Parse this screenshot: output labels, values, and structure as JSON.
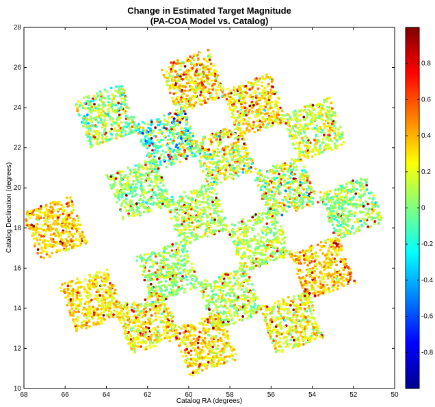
{
  "chart_data": {
    "type": "scatter",
    "title": "Change in Estimated Target Magnitude",
    "subtitle": "(PA-COA Model vs. Catalog)",
    "xlabel": "Catalog RA (degrees)",
    "ylabel": "Catalog Declination (degrees)",
    "xlim": [
      50,
      68
    ],
    "ylim": [
      10,
      28
    ],
    "x_reversed": true,
    "x_ticks": [
      "68",
      "66",
      "64",
      "62",
      "60",
      "58",
      "56",
      "54",
      "52",
      "50"
    ],
    "y_ticks": [
      "10",
      "12",
      "14",
      "16",
      "18",
      "20",
      "22",
      "24",
      "26",
      "28"
    ],
    "colormap": "jet",
    "color_range": [
      -1,
      1
    ],
    "colorbar_ticks": [
      "0.8",
      "0.6",
      "0.4",
      "0.2",
      "0",
      "-0.2",
      "-0.4",
      "-0.6",
      "-0.8"
    ],
    "marker": "dot",
    "tiles": [
      {
        "center": [
          59.8,
          25.3
        ],
        "mean": 0.3,
        "spread": 0.3
      },
      {
        "center": [
          56.8,
          24.1
        ],
        "mean": 0.3,
        "spread": 0.28
      },
      {
        "center": [
          53.9,
          22.9
        ],
        "mean": 0.15,
        "spread": 0.25
      },
      {
        "center": [
          64.0,
          23.6
        ],
        "mean": 0.05,
        "spread": 0.35
      },
      {
        "center": [
          61.0,
          22.4
        ],
        "mean": -0.05,
        "spread": 0.55
      },
      {
        "center": [
          58.3,
          21.6
        ],
        "mean": 0.15,
        "spread": 0.35
      },
      {
        "center": [
          55.3,
          20.0
        ],
        "mean": 0.1,
        "spread": 0.35
      },
      {
        "center": [
          52.1,
          19.0
        ],
        "mean": 0.05,
        "spread": 0.25
      },
      {
        "center": [
          62.4,
          19.9
        ],
        "mean": 0.05,
        "spread": 0.2
      },
      {
        "center": [
          59.6,
          18.7
        ],
        "mean": 0.1,
        "spread": 0.22
      },
      {
        "center": [
          56.6,
          17.4
        ],
        "mean": 0.1,
        "spread": 0.22
      },
      {
        "center": [
          53.5,
          16.0
        ],
        "mean": 0.35,
        "spread": 0.25
      },
      {
        "center": [
          66.5,
          18.0
        ],
        "mean": 0.35,
        "spread": 0.2
      },
      {
        "center": [
          61.0,
          15.8
        ],
        "mean": 0.05,
        "spread": 0.22
      },
      {
        "center": [
          58.0,
          14.5
        ],
        "mean": 0.1,
        "spread": 0.22
      },
      {
        "center": [
          55.0,
          13.3
        ],
        "mean": 0.25,
        "spread": 0.28
      },
      {
        "center": [
          64.7,
          14.4
        ],
        "mean": 0.3,
        "spread": 0.2
      },
      {
        "center": [
          62.0,
          13.3
        ],
        "mean": 0.25,
        "spread": 0.25
      },
      {
        "center": [
          59.2,
          12.2
        ],
        "mean": 0.3,
        "spread": 0.22
      }
    ]
  }
}
